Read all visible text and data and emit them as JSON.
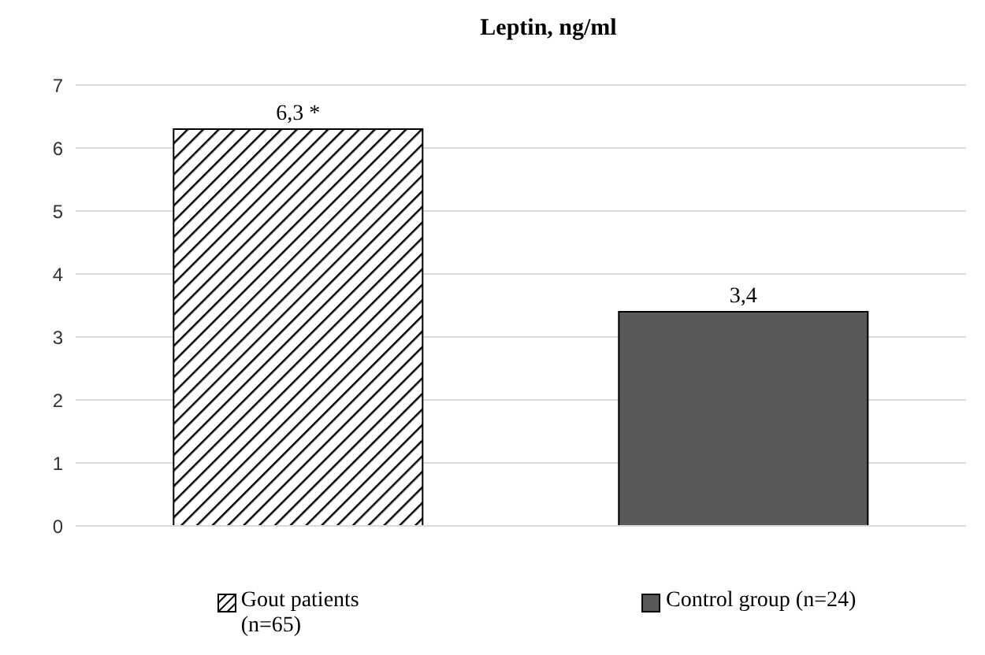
{
  "chart_data": {
    "type": "bar",
    "title": "Leptin, ng/ml",
    "categories": [
      null,
      null
    ],
    "series": [
      {
        "name": "Gout patients (n=65)",
        "color": "#000000",
        "values": [
          6.3,
          null
        ],
        "value_labels": [
          "6,3 *",
          null
        ]
      },
      {
        "name": "Control group (n=24)",
        "color": "#595959",
        "values": [
          null,
          3.4
        ],
        "value_labels": [
          null,
          "3,4"
        ]
      }
    ],
    "ylim": [
      0,
      7
    ],
    "yticks": [
      0,
      1,
      2,
      3,
      4,
      5,
      6,
      7
    ],
    "grid": "y",
    "legend": "bottom"
  }
}
